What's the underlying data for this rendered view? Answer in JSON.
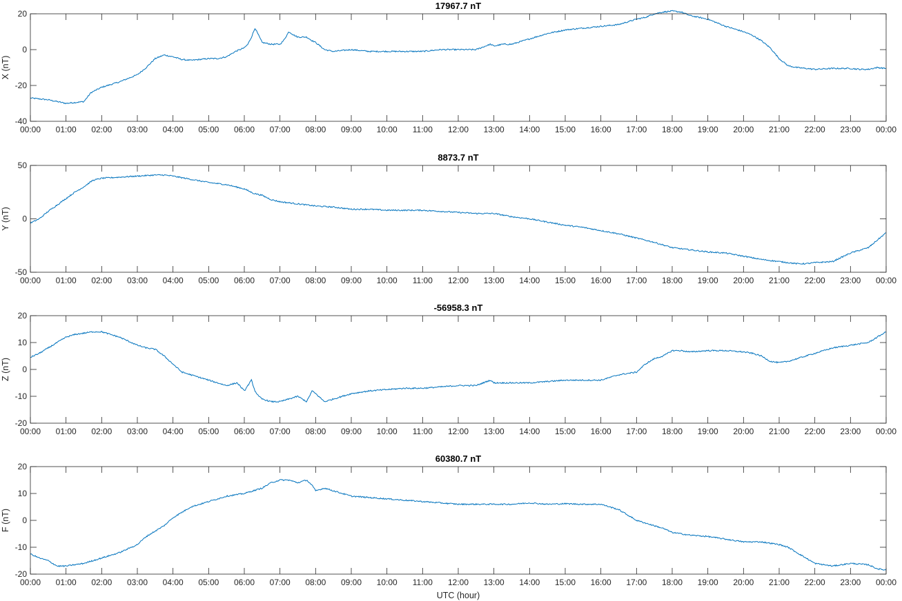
{
  "figure": {
    "xlabel": "UTC (hour)"
  },
  "colors": {
    "series": "#0072bd",
    "axis": "#262626"
  },
  "chart_data": [
    {
      "type": "line",
      "title": "17967.7 nT",
      "ylabel": "X (nT)",
      "xlabel": "",
      "xlim": [
        0,
        24
      ],
      "ylim": [
        -40,
        20
      ],
      "yticks": [
        -40,
        -20,
        0,
        20
      ],
      "xticklabels": [
        "00:00",
        "01:00",
        "02:00",
        "03:00",
        "04:00",
        "05:00",
        "06:00",
        "07:00",
        "08:00",
        "09:00",
        "10:00",
        "11:00",
        "12:00",
        "13:00",
        "14:00",
        "15:00",
        "16:00",
        "17:00",
        "18:00",
        "19:00",
        "20:00",
        "21:00",
        "22:00",
        "23:00",
        "00:00"
      ],
      "grid": false,
      "series": [
        {
          "x": [
            0,
            0.5,
            1,
            1.5,
            1.7,
            2,
            2.5,
            3,
            3.25,
            3.5,
            3.75,
            4,
            4.25,
            4.5,
            5,
            5.25,
            5.5,
            5.75,
            6,
            6.1,
            6.2,
            6.3,
            6.4,
            6.5,
            6.75,
            7,
            7.1,
            7.25,
            7.4,
            7.5,
            7.75,
            7.9,
            8,
            8.25,
            8.5,
            9,
            9.5,
            10,
            10.5,
            11,
            11.5,
            12,
            12.5,
            12.9,
            13,
            13.25,
            13.5,
            14,
            14.5,
            15,
            15.5,
            16,
            16.5,
            17,
            17.25,
            17.5,
            17.75,
            18,
            18.25,
            18.5,
            19,
            19.5,
            20,
            20.25,
            20.5,
            20.75,
            21,
            21.25,
            21.5,
            22,
            22.5,
            23,
            23.25,
            23.5,
            23.75,
            24
          ],
          "y": [
            -27,
            -28,
            -30,
            -29,
            -24,
            -21,
            -18,
            -14,
            -10,
            -5,
            -3,
            -4,
            -5.5,
            -6,
            -5,
            -5,
            -4,
            -1,
            1,
            3,
            7,
            12,
            8,
            4,
            3,
            3,
            5,
            10,
            8,
            7,
            7,
            5,
            4,
            0,
            -1,
            0,
            -1,
            -1,
            -1,
            -1,
            0,
            0,
            0,
            3,
            2,
            3,
            3,
            6,
            9,
            11,
            12,
            13,
            14,
            17,
            18,
            20,
            21,
            21.5,
            21,
            19,
            17,
            13,
            10,
            8,
            5,
            1,
            -5,
            -9,
            -10,
            -11,
            -10.5,
            -10.5,
            -11,
            -11,
            -10,
            -10.5
          ]
        }
      ]
    },
    {
      "type": "line",
      "title": "8873.7 nT",
      "ylabel": "Y (nT)",
      "xlabel": "",
      "xlim": [
        0,
        24
      ],
      "ylim": [
        -50,
        50
      ],
      "yticks": [
        -50,
        0,
        50
      ],
      "xticklabels": [
        "00:00",
        "01:00",
        "02:00",
        "03:00",
        "04:00",
        "05:00",
        "06:00",
        "07:00",
        "08:00",
        "09:00",
        "10:00",
        "11:00",
        "12:00",
        "13:00",
        "14:00",
        "15:00",
        "16:00",
        "17:00",
        "18:00",
        "19:00",
        "20:00",
        "21:00",
        "22:00",
        "23:00",
        "00:00"
      ],
      "grid": false,
      "series": [
        {
          "x": [
            0,
            0.25,
            0.5,
            0.75,
            1,
            1.25,
            1.5,
            1.75,
            2,
            2.5,
            3,
            3.5,
            3.75,
            4,
            4.5,
            5,
            5.5,
            6,
            6.25,
            6.5,
            6.75,
            7,
            7.5,
            8,
            8.5,
            9,
            9.5,
            10,
            10.5,
            11,
            11.5,
            12,
            12.5,
            13,
            13.5,
            14,
            14.5,
            15,
            15.5,
            16,
            16.5,
            17,
            17.5,
            18,
            18.5,
            19,
            19.5,
            20,
            20.5,
            21,
            21.25,
            21.5,
            21.75,
            22,
            22.5,
            23,
            23.5,
            23.75,
            24
          ],
          "y": [
            -4,
            0,
            7,
            13,
            19,
            25,
            30,
            36,
            38,
            39,
            40,
            41,
            41,
            40,
            37,
            34,
            32,
            28,
            24,
            22,
            18,
            16,
            14,
            12,
            11,
            9,
            9,
            8,
            8,
            8,
            7,
            6,
            5,
            5,
            2,
            0,
            -3,
            -6,
            -8,
            -11,
            -14,
            -18,
            -22,
            -27,
            -29,
            -31,
            -32,
            -35,
            -38,
            -40,
            -41,
            -42,
            -42,
            -41,
            -40,
            -32,
            -27,
            -20,
            -13
          ]
        }
      ]
    },
    {
      "type": "line",
      "title": "-56958.3 nT",
      "ylabel": "Z (nT)",
      "xlabel": "",
      "xlim": [
        0,
        24
      ],
      "ylim": [
        -20,
        20
      ],
      "yticks": [
        -20,
        -10,
        0,
        10,
        20
      ],
      "xticklabels": [
        "00:00",
        "01:00",
        "02:00",
        "03:00",
        "04:00",
        "05:00",
        "06:00",
        "07:00",
        "08:00",
        "09:00",
        "10:00",
        "11:00",
        "12:00",
        "13:00",
        "14:00",
        "15:00",
        "16:00",
        "17:00",
        "18:00",
        "19:00",
        "20:00",
        "21:00",
        "22:00",
        "23:00",
        "00:00"
      ],
      "grid": false,
      "series": [
        {
          "x": [
            0,
            0.25,
            0.5,
            0.75,
            1,
            1.25,
            1.5,
            1.75,
            2,
            2.5,
            3,
            3.25,
            3.5,
            3.75,
            4,
            4.25,
            4.5,
            5,
            5.5,
            5.8,
            6,
            6.1,
            6.2,
            6.3,
            6.4,
            6.5,
            6.75,
            7,
            7.25,
            7.5,
            7.75,
            7.9,
            8,
            8.25,
            8.5,
            9,
            9.5,
            10,
            10.5,
            11,
            11.5,
            12,
            12.5,
            12.9,
            13,
            13.25,
            13.5,
            14,
            14.5,
            15,
            15.5,
            16,
            16.5,
            17,
            17.25,
            17.5,
            17.75,
            18,
            18.25,
            18.5,
            19,
            19.5,
            20,
            20.25,
            20.5,
            20.75,
            21,
            21.25,
            21.5,
            22,
            22.5,
            23,
            23.5,
            23.75,
            24
          ],
          "y": [
            4.5,
            6,
            8,
            10,
            12,
            13,
            13.5,
            14,
            14,
            12,
            9,
            8,
            7.5,
            5,
            2,
            -1,
            -2,
            -4,
            -6,
            -5,
            -8,
            -6,
            -4,
            -8,
            -10,
            -11,
            -12,
            -12,
            -11,
            -10,
            -12,
            -8,
            -9,
            -12,
            -11,
            -9,
            -8,
            -7.5,
            -7,
            -7,
            -6.5,
            -6,
            -6,
            -4,
            -5,
            -5,
            -5,
            -5,
            -4.5,
            -4,
            -4,
            -4,
            -2,
            -1,
            2,
            4,
            5,
            7,
            7,
            6.5,
            7,
            7,
            6.5,
            6,
            5,
            3,
            2.5,
            3,
            4,
            6,
            8,
            9,
            10,
            12,
            14
          ]
        }
      ]
    },
    {
      "type": "line",
      "title": "60380.7 nT",
      "ylabel": "F (nT)",
      "xlabel": "UTC (hour)",
      "xlim": [
        0,
        24
      ],
      "ylim": [
        -20,
        20
      ],
      "yticks": [
        -20,
        -10,
        0,
        10,
        20
      ],
      "xticklabels": [
        "00:00",
        "01:00",
        "02:00",
        "03:00",
        "04:00",
        "05:00",
        "06:00",
        "07:00",
        "08:00",
        "09:00",
        "10:00",
        "11:00",
        "12:00",
        "13:00",
        "14:00",
        "15:00",
        "16:00",
        "17:00",
        "18:00",
        "19:00",
        "20:00",
        "21:00",
        "22:00",
        "23:00",
        "00:00"
      ],
      "grid": false,
      "series": [
        {
          "x": [
            0,
            0.25,
            0.5,
            0.75,
            1,
            1.25,
            1.5,
            1.75,
            2,
            2.5,
            3,
            3.25,
            3.5,
            3.75,
            4,
            4.25,
            4.5,
            5,
            5.5,
            6,
            6.25,
            6.5,
            6.75,
            7,
            7.25,
            7.5,
            7.75,
            7.9,
            8,
            8.25,
            8.5,
            9,
            9.5,
            10,
            10.5,
            11,
            11.5,
            12,
            12.5,
            13,
            13.5,
            14,
            14.5,
            15,
            15.5,
            16,
            16.5,
            17,
            17.25,
            17.5,
            17.75,
            18,
            18.25,
            18.5,
            19,
            19.5,
            20,
            20.5,
            21,
            21.25,
            21.5,
            21.75,
            22,
            22.5,
            23,
            23.5,
            23.75,
            24
          ],
          "y": [
            -12.5,
            -14,
            -15,
            -17,
            -17,
            -16.5,
            -16,
            -15,
            -14,
            -12,
            -9,
            -6,
            -4,
            -2,
            1,
            3,
            5,
            7,
            9,
            10,
            11,
            12,
            14,
            15,
            15,
            14,
            15,
            13,
            11,
            12,
            11,
            9,
            8.5,
            8,
            7.5,
            7,
            6.5,
            6,
            6,
            6,
            6,
            6.5,
            6,
            6.2,
            6,
            6,
            4,
            0,
            -1,
            -2,
            -3,
            -4.5,
            -5,
            -5.5,
            -6,
            -7,
            -8,
            -8,
            -9,
            -10,
            -12,
            -14,
            -16,
            -17,
            -16,
            -16.5,
            -18,
            -18.5
          ]
        }
      ]
    }
  ]
}
